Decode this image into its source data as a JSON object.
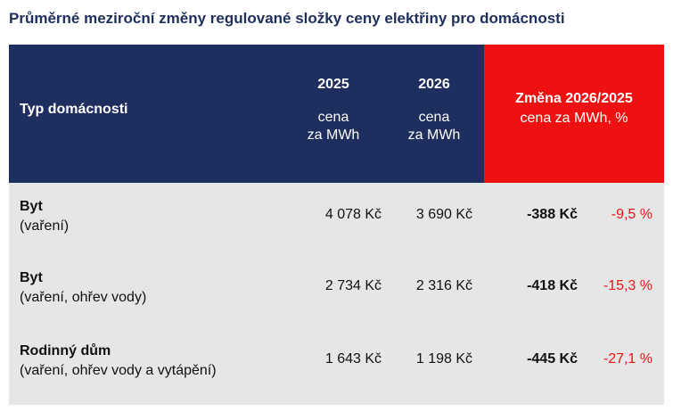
{
  "title": "Průměrné meziroční změny regulované složky ceny elektřiny pro domácnosti",
  "header": {
    "type_label": "Typ domácnosti",
    "col_2025": {
      "year": "2025",
      "sub1": "cena",
      "sub2": "za MWh"
    },
    "col_2026": {
      "year": "2026",
      "sub1": "cena",
      "sub2": "za MWh"
    },
    "change": {
      "title": "Změna 2026/2025",
      "sub": "cena za MWh, %"
    }
  },
  "rows": [
    {
      "name": "Byt",
      "desc": "(vaření)",
      "v2025": "4 078 Kč",
      "v2026": "3 690 Kč",
      "abs": "-388 Kč",
      "pct": "-9,5 %"
    },
    {
      "name": "Byt",
      "desc": "(vaření, ohřev vody)",
      "v2025": "2 734 Kč",
      "v2026": "2 316 Kč",
      "abs": "-418 Kč",
      "pct": "-15,3 %"
    },
    {
      "name": "Rodinný dům",
      "desc": "(vaření, ohřev vody a vytápění)",
      "v2025": "1 643 Kč",
      "v2026": "1 198 Kč",
      "abs": "-445 Kč",
      "pct": "-27,1 %"
    }
  ],
  "colors": {
    "header_navy": "#1e2e5e",
    "header_red": "#ee1111",
    "body_grey": "#e6e6e6",
    "title": "#1e2f5c"
  }
}
